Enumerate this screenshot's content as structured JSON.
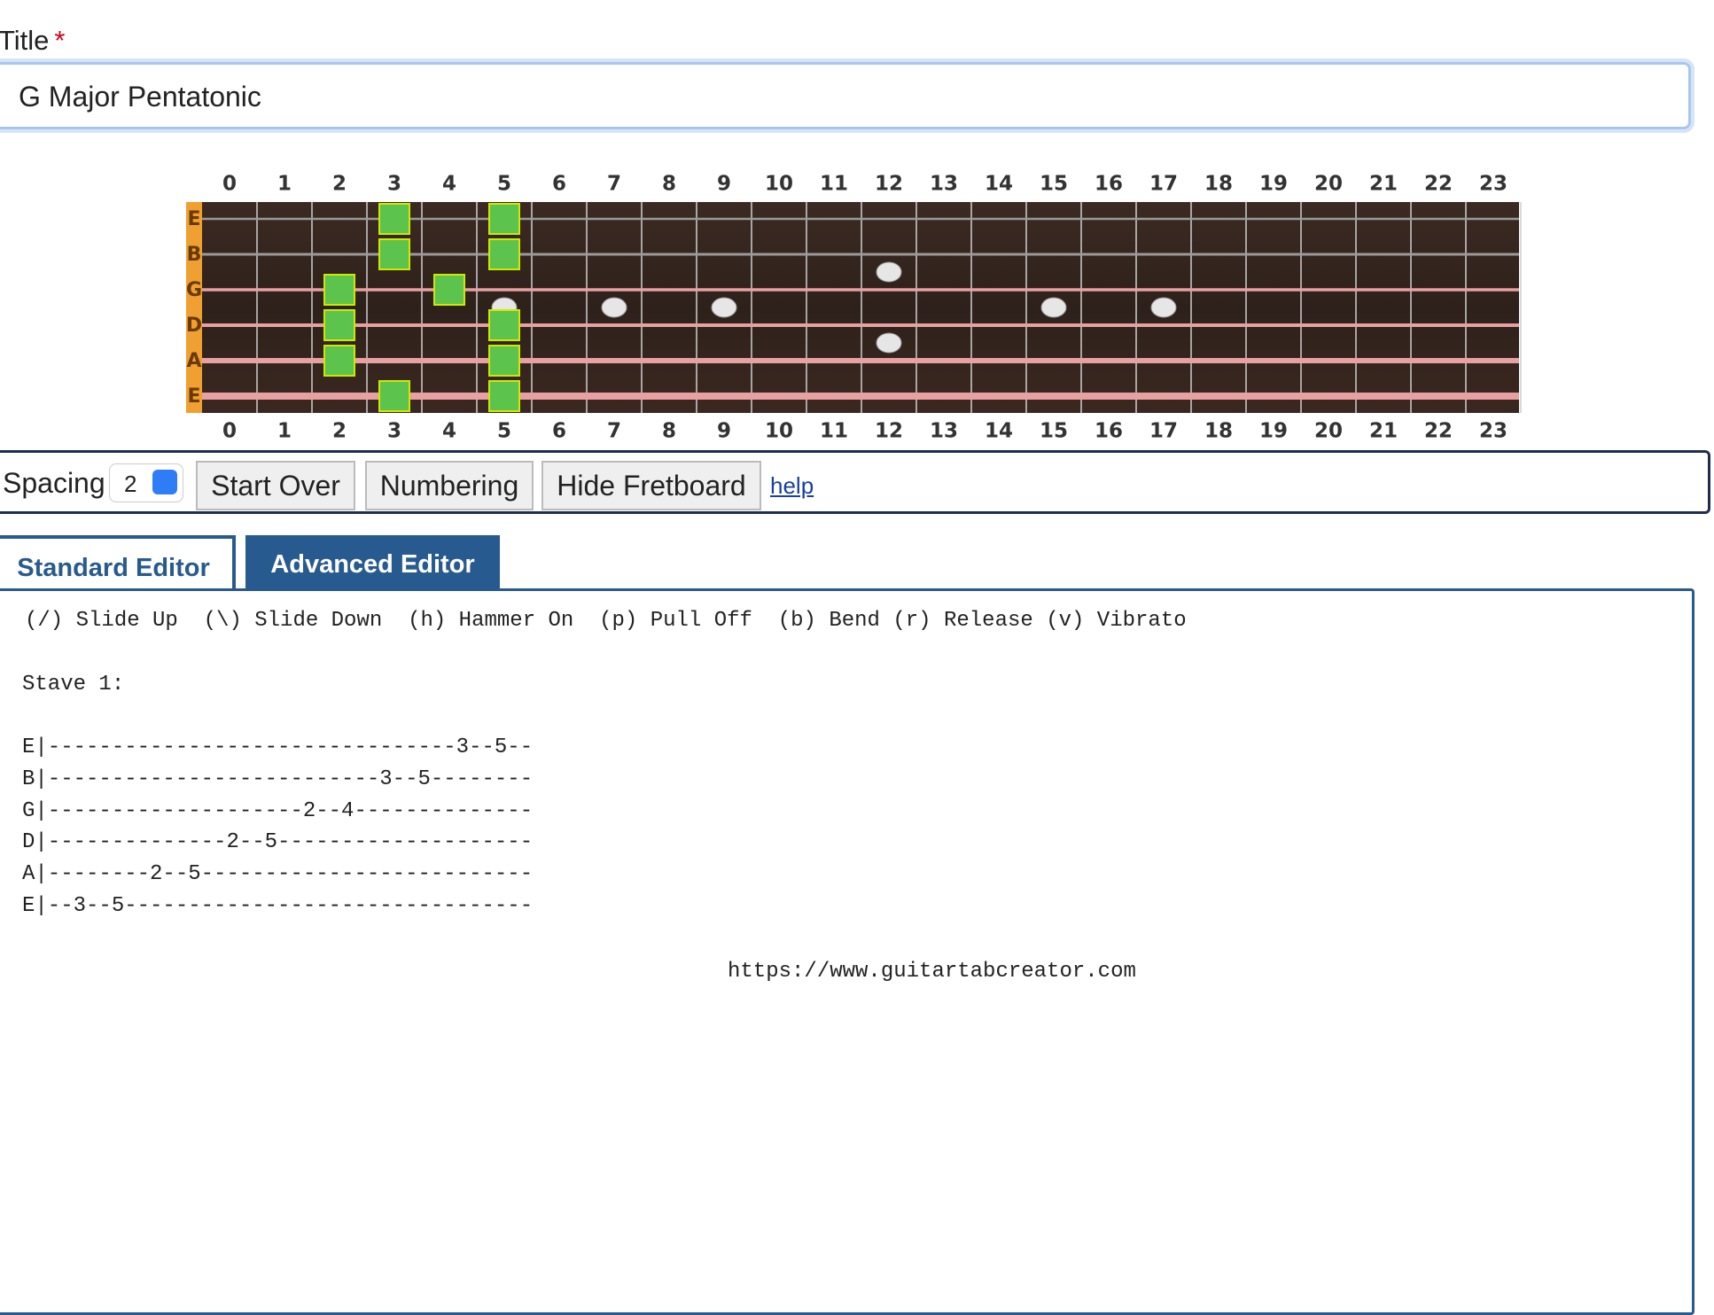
{
  "form": {
    "title_label": "Title",
    "required_mark": "*",
    "title_value": "G Major Pentatonic"
  },
  "fretboard": {
    "fret_numbers": [
      0,
      1,
      2,
      3,
      4,
      5,
      6,
      7,
      8,
      9,
      10,
      11,
      12,
      13,
      14,
      15,
      16,
      17,
      18,
      19,
      20,
      21,
      22,
      23
    ],
    "strings": [
      "E",
      "B",
      "G",
      "D",
      "A",
      "E"
    ],
    "inlay_frets": [
      5,
      7,
      9,
      15,
      17
    ],
    "double_inlay_frets": [
      12
    ],
    "notes": [
      {
        "string": 0,
        "fret": 3
      },
      {
        "string": 0,
        "fret": 5
      },
      {
        "string": 1,
        "fret": 3
      },
      {
        "string": 1,
        "fret": 5
      },
      {
        "string": 2,
        "fret": 2
      },
      {
        "string": 2,
        "fret": 4
      },
      {
        "string": 3,
        "fret": 2
      },
      {
        "string": 3,
        "fret": 5
      },
      {
        "string": 4,
        "fret": 2
      },
      {
        "string": 4,
        "fret": 5
      },
      {
        "string": 5,
        "fret": 3
      },
      {
        "string": 5,
        "fret": 5
      }
    ]
  },
  "toolbar": {
    "spacing_label": "Spacing",
    "spacing_value": 2,
    "buttons": [
      "Start Over",
      "Numbering",
      "Hide Fretboard"
    ],
    "help_link": "help"
  },
  "tabs": [
    "Standard Editor",
    "Advanced Editor"
  ],
  "editor": {
    "legend": "(/) Slide Up  (\\) Slide Down  (h) Hammer On  (p) Pull Off  (b) Bend (r) Release (v) Vibrato",
    "stave": "Stave 1:",
    "tab_lines": [
      "E|--------------------------------3--5--",
      "B|--------------------------3--5--------",
      "G|--------------------2--4--------------",
      "D|--------------2--5--------------------",
      "A|--------2--5--------------------------",
      "E|--3--5--------------------------------"
    ],
    "footer_url": "https://www.guitartabcreator.com"
  }
}
